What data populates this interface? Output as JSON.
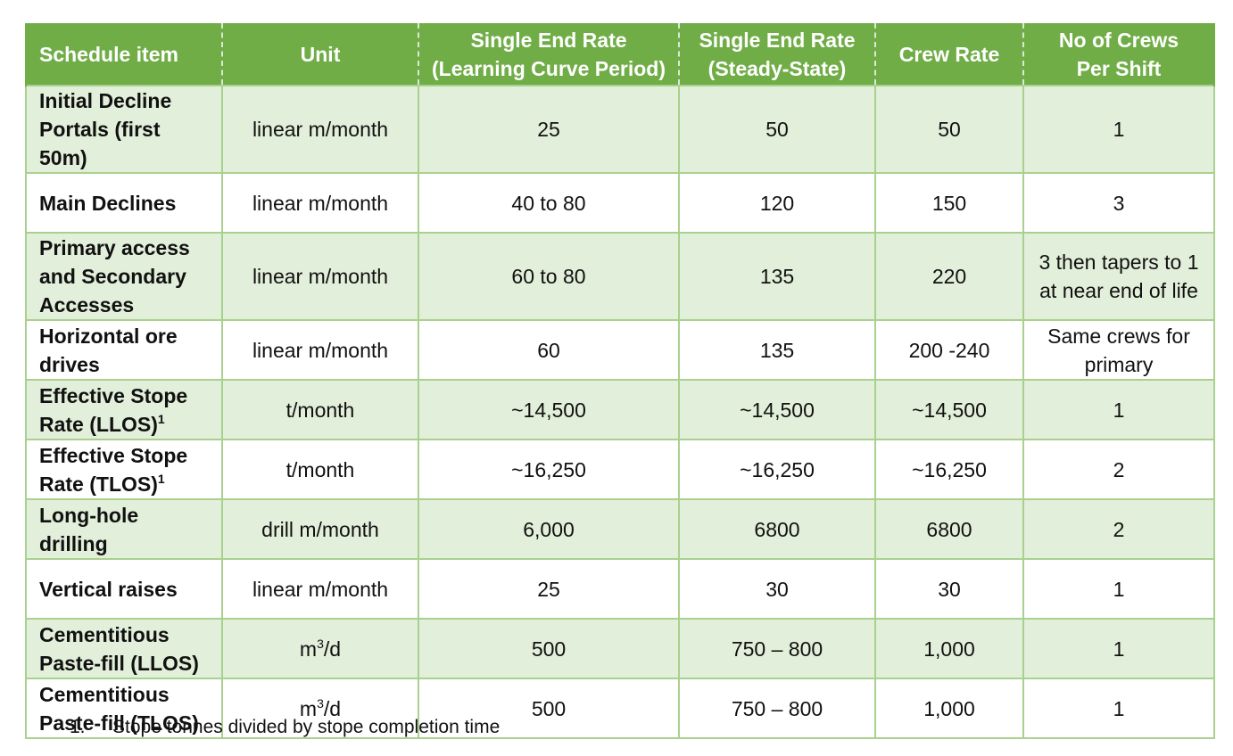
{
  "table": {
    "headers": [
      {
        "line1": "Schedule item",
        "line2": ""
      },
      {
        "line1": "Unit",
        "line2": ""
      },
      {
        "line1": "Single End Rate",
        "line2": "(Learning Curve Period)"
      },
      {
        "line1": "Single End Rate",
        "line2": "(Steady-State)"
      },
      {
        "line1": "Crew Rate",
        "line2": ""
      },
      {
        "line1": "No of Crews",
        "line2": "Per Shift"
      }
    ],
    "rows": [
      {
        "item": "Initial Decline Portals (first 50m)",
        "sup": "",
        "unit": "linear m/month",
        "unit_sup": "",
        "unit_suffix": "",
        "learning": "25",
        "steady": "50",
        "crew_rate": "50",
        "crews": "1"
      },
      {
        "item": "Main Declines",
        "sup": "",
        "unit": "linear m/month",
        "unit_sup": "",
        "unit_suffix": "",
        "learning": "40 to 80",
        "steady": "120",
        "crew_rate": "150",
        "crews": "3"
      },
      {
        "item": "Primary access and Secondary Accesses",
        "sup": "",
        "unit": "linear m/month",
        "unit_sup": "",
        "unit_suffix": "",
        "learning": "60 to 80",
        "steady": "135",
        "crew_rate": "220",
        "crews": "3 then tapers to 1 at near end of life"
      },
      {
        "item": "Horizontal ore drives",
        "sup": "",
        "unit": "linear m/month",
        "unit_sup": "",
        "unit_suffix": "",
        "learning": "60",
        "steady": "135",
        "crew_rate": "200 -240",
        "crews": "Same crews for primary"
      },
      {
        "item": "Effective Stope Rate (LLOS)",
        "sup": "1",
        "unit": "t/month",
        "unit_sup": "",
        "unit_suffix": "",
        "learning": "~14,500",
        "steady": "~14,500",
        "crew_rate": "~14,500",
        "crews": "1"
      },
      {
        "item": "Effective Stope Rate (TLOS)",
        "sup": "1",
        "unit": "t/month",
        "unit_sup": "",
        "unit_suffix": "",
        "learning": "~16,250",
        "steady": "~16,250",
        "crew_rate": "~16,250",
        "crews": "2"
      },
      {
        "item": "Long-hole drilling",
        "sup": "",
        "unit": "drill m/month",
        "unit_sup": "",
        "unit_suffix": "",
        "learning": "6,000",
        "steady": "6800",
        "crew_rate": "6800",
        "crews": "2"
      },
      {
        "item": "Vertical raises",
        "sup": "",
        "unit": "linear m/month",
        "unit_sup": "",
        "unit_suffix": "",
        "learning": "25",
        "steady": "30",
        "crew_rate": "30",
        "crews": "1"
      },
      {
        "item": "Cementitious Paste-fill (LLOS)",
        "sup": "",
        "unit": "m",
        "unit_sup": "3",
        "unit_suffix": "/d",
        "learning": "500",
        "steady": "750 – 800",
        "crew_rate": "1,000",
        "crews": "1"
      },
      {
        "item": "Cementitious Paste-fill (TLOS)",
        "sup": "",
        "unit": "m",
        "unit_sup": "3",
        "unit_suffix": "/d",
        "learning": "500",
        "steady": "750 – 800",
        "crew_rate": "1,000",
        "crews": "1"
      }
    ]
  },
  "footnote": {
    "number": "1.",
    "text": "Stope tonnes divided by stope completion time"
  },
  "colors": {
    "header_bg": "#70ad47",
    "band_bg": "#e2efda",
    "border": "#a9d18e"
  }
}
